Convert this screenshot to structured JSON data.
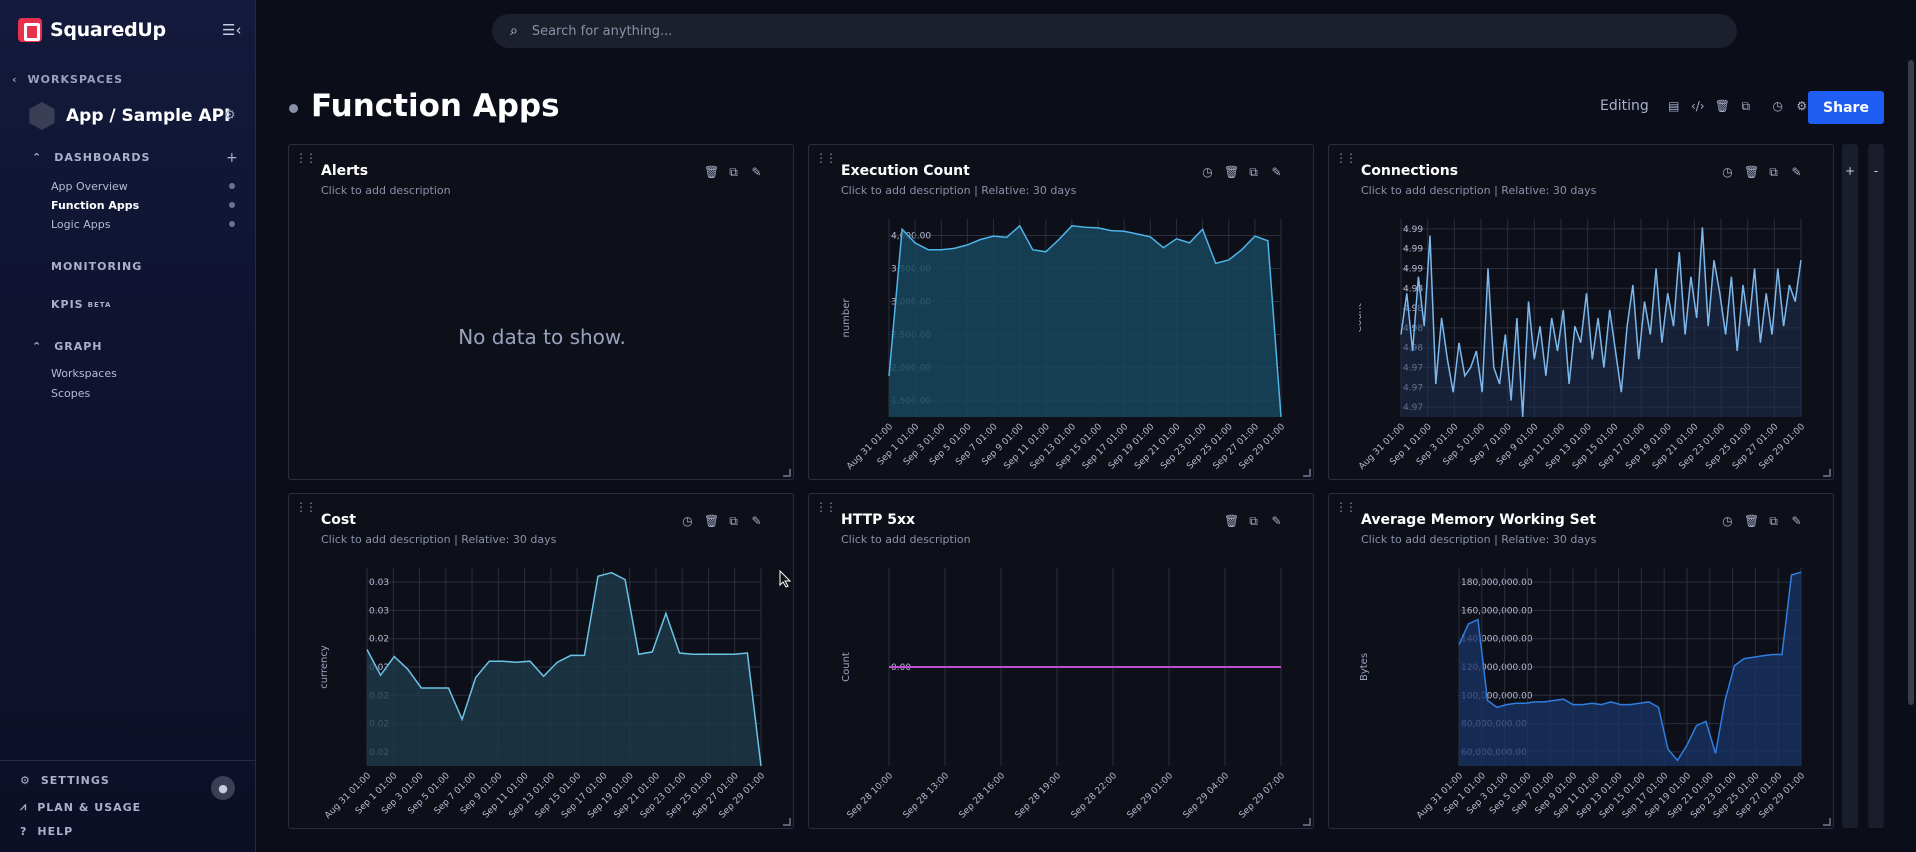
{
  "brand": {
    "name": "SquaredUp"
  },
  "sidebar": {
    "back_label": "WORKSPACES",
    "workspace_title": "App / Sample API",
    "dashboards_label": "DASHBOARDS",
    "dashboards": [
      {
        "label": "App Overview",
        "active": false
      },
      {
        "label": "Function Apps",
        "active": true
      },
      {
        "label": "Logic Apps",
        "active": false
      }
    ],
    "monitoring_label": "MONITORING",
    "kpis_label": "KPIS",
    "kpis_badge": "BETA",
    "graph_label": "GRAPH",
    "graph_items": [
      "Workspaces",
      "Scopes"
    ],
    "bottom": {
      "settings": "SETTINGS",
      "plan": "PLAN & USAGE",
      "help": "HELP"
    }
  },
  "search": {
    "placeholder": "Search for anything..."
  },
  "page": {
    "title": "Function Apps",
    "mode": "Editing",
    "share_label": "Share"
  },
  "side_tools": {
    "add": "+",
    "remove": "-"
  },
  "tiles": {
    "alerts": {
      "title": "Alerts",
      "desc": "Click to add description",
      "nodata": "No data to show."
    },
    "execution": {
      "title": "Execution Count",
      "desc": "Click to add description  |  Relative: 30 days"
    },
    "connections": {
      "title": "Connections",
      "desc": "Click to add description  |  Relative: 30 days"
    },
    "cost": {
      "title": "Cost",
      "desc": "Click to add description  |  Relative: 30 days"
    },
    "http5xx": {
      "title": "HTTP 5xx",
      "desc": "Click to add description"
    },
    "memory": {
      "title": "Average Memory Working Set",
      "desc": "Click to add description  |  Relative: 30 days"
    }
  },
  "colors": {
    "accent": "#1f5ef2",
    "line": "#4fb3e8",
    "area": "#16465e",
    "pink": "#c04fd0",
    "blue_line": "#2f7de0"
  },
  "chart_data": [
    {
      "id": "execution",
      "type": "area",
      "ylabel": "number",
      "yticks": [
        "4,000.00",
        "3,500.00",
        "3,000.00",
        "2,500.00",
        "2,000.00",
        "1,500.00"
      ],
      "ylim": [
        1400,
        4300
      ],
      "xticks": [
        "Aug 31 01:00",
        "Sep 1 01:00",
        "Sep 3 01:00",
        "Sep 5 01:00",
        "Sep 7 01:00",
        "Sep 9 01:00",
        "Sep 11 01:00",
        "Sep 13 01:00",
        "Sep 15 01:00",
        "Sep 17 01:00",
        "Sep 19 01:00",
        "Sep 21 01:00",
        "Sep 23 01:00",
        "Sep 25 01:00",
        "Sep 27 01:00",
        "Sep 29 01:00"
      ],
      "values": [
        2000,
        4150,
        3950,
        3850,
        3850,
        3870,
        3920,
        4000,
        4050,
        4030,
        4200,
        3850,
        3820,
        4000,
        4200,
        4180,
        4170,
        4130,
        4120,
        4080,
        4040,
        3880,
        4010,
        3950,
        4150,
        3650,
        3700,
        3850,
        4050,
        3980,
        1400
      ]
    },
    {
      "id": "connections",
      "type": "line",
      "ylabel": "Count",
      "yticks": [
        "4.99",
        "4.99",
        "4.99",
        "4.98",
        "4.98",
        "4.98",
        "4.98",
        "4.97",
        "4.97",
        "4.97"
      ],
      "ylim": [
        4.968,
        4.992
      ],
      "xticks": [
        "Aug 31 01:00",
        "Sep 1 01:00",
        "Sep 3 01:00",
        "Sep 5 01:00",
        "Sep 7 01:00",
        "Sep 9 01:00",
        "Sep 11 01:00",
        "Sep 13 01:00",
        "Sep 15 01:00",
        "Sep 17 01:00",
        "Sep 19 01:00",
        "Sep 21 01:00",
        "Sep 23 01:00",
        "Sep 25 01:00",
        "Sep 27 01:00",
        "Sep 29 01:00"
      ],
      "values": [
        4.978,
        4.983,
        4.976,
        4.985,
        4.979,
        4.99,
        4.972,
        4.98,
        4.975,
        4.971,
        4.977,
        4.973,
        4.974,
        4.976,
        4.971,
        4.986,
        4.974,
        4.972,
        4.978,
        4.97,
        4.98,
        4.968,
        4.982,
        4.975,
        4.979,
        4.973,
        4.98,
        4.976,
        4.981,
        4.972,
        4.979,
        4.977,
        4.983,
        4.975,
        4.98,
        4.974,
        4.981,
        4.976,
        4.971,
        4.979,
        4.984,
        4.975,
        4.982,
        4.978,
        4.986,
        4.977,
        4.983,
        4.979,
        4.988,
        4.978,
        4.985,
        4.98,
        4.991,
        4.979,
        4.987,
        4.983,
        4.978,
        4.985,
        4.976,
        4.984,
        4.979,
        4.986,
        4.977,
        4.983,
        4.978,
        4.986,
        4.979,
        4.984,
        4.982,
        4.987
      ]
    },
    {
      "id": "cost",
      "type": "area",
      "ylabel": "currency",
      "yticks": [
        "0.03",
        "0.03",
        "0.02",
        "0.02",
        "0.02",
        "0.02",
        "0.02"
      ],
      "ylim": [
        0.0145,
        0.0315
      ],
      "xticks": [
        "Aug 31 01:00",
        "Sep 1 01:00",
        "Sep 3 01:00",
        "Sep 5 01:00",
        "Sep 7 01:00",
        "Sep 9 01:00",
        "Sep 11 01:00",
        "Sep 13 01:00",
        "Sep 15 01:00",
        "Sep 17 01:00",
        "Sep 19 01:00",
        "Sep 21 01:00",
        "Sep 23 01:00",
        "Sep 25 01:00",
        "Sep 27 01:00",
        "Sep 29 01:00"
      ],
      "values": [
        0.0245,
        0.0223,
        0.0239,
        0.0228,
        0.0212,
        0.0212,
        0.0212,
        0.0185,
        0.0221,
        0.0235,
        0.0235,
        0.0234,
        0.0235,
        0.0222,
        0.0234,
        0.024,
        0.024,
        0.0308,
        0.0311,
        0.0305,
        0.0241,
        0.0243,
        0.0276,
        0.0242,
        0.0241,
        0.0241,
        0.0241,
        0.0241,
        0.0242,
        0.0145
      ]
    },
    {
      "id": "http5xx",
      "type": "line",
      "ylabel": "Count",
      "yticks": [
        "0.00"
      ],
      "ylim": [
        -1,
        1
      ],
      "xticks": [
        "Sep 28 10:00",
        "Sep 28 13:00",
        "Sep 28 16:00",
        "Sep 28 19:00",
        "Sep 28 22:00",
        "Sep 29 01:00",
        "Sep 29 04:00",
        "Sep 29 07:00"
      ],
      "values": [
        0,
        0,
        0,
        0,
        0,
        0,
        0,
        0,
        0
      ]
    },
    {
      "id": "memory",
      "type": "area",
      "ylabel": "Bytes",
      "yticks": [
        "180,000,000.00",
        "160,000,000.00",
        "140,000,000.00",
        "120,000,000.00",
        "100,000,000.00",
        "80,000,000.00",
        "60,000,000.00"
      ],
      "ylim": [
        53000000,
        195000000
      ],
      "xticks": [
        "Aug 31 01:00",
        "Sep 1 01:00",
        "Sep 3 01:00",
        "Sep 5 01:00",
        "Sep 7 01:00",
        "Sep 9 01:00",
        "Sep 11 01:00",
        "Sep 13 01:00",
        "Sep 15 01:00",
        "Sep 17 01:00",
        "Sep 19 01:00",
        "Sep 21 01:00",
        "Sep 23 01:00",
        "Sep 25 01:00",
        "Sep 27 01:00",
        "Sep 29 01:00"
      ],
      "values": [
        140000000,
        155000000,
        158000000,
        100000000,
        95000000,
        97000000,
        98000000,
        98000000,
        99000000,
        99000000,
        100000000,
        101000000,
        97000000,
        97000000,
        98000000,
        97000000,
        99000000,
        97000000,
        97000000,
        98000000,
        99000000,
        95000000,
        65000000,
        57000000,
        68000000,
        82000000,
        85000000,
        62000000,
        100000000,
        125000000,
        130000000,
        131000000,
        132000000,
        133000000,
        133000000,
        190000000,
        192000000
      ]
    }
  ]
}
